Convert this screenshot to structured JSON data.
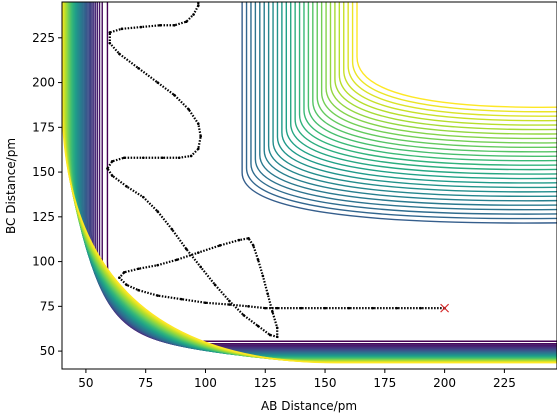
{
  "chart_data": {
    "type": "contour",
    "title": "",
    "xlabel": "AB Distance/pm",
    "ylabel": "BC Distance/pm",
    "xlim": [
      40,
      247
    ],
    "ylim": [
      40,
      245
    ],
    "xticks": [
      50,
      75,
      100,
      125,
      150,
      175,
      200,
      225
    ],
    "yticks": [
      50,
      75,
      100,
      125,
      150,
      175,
      200,
      225
    ],
    "xtick_labels": [
      "50",
      "75",
      "100",
      "125",
      "150",
      "175",
      "200",
      "225"
    ],
    "ytick_labels": [
      "50",
      "75",
      "100",
      "125",
      "150",
      "175",
      "200",
      "225"
    ],
    "colormap": "viridis",
    "contour_levels": 38,
    "trajectory": {
      "marker": "dotted-line",
      "color": "#000000",
      "points": [
        [
          200,
          74
        ],
        [
          190,
          74
        ],
        [
          180,
          74
        ],
        [
          170,
          74
        ],
        [
          160,
          74
        ],
        [
          150,
          74
        ],
        [
          140,
          74
        ],
        [
          130,
          74
        ],
        [
          125,
          74
        ],
        [
          118,
          75
        ],
        [
          110,
          76
        ],
        [
          100,
          77
        ],
        [
          90,
          79
        ],
        [
          80,
          81
        ],
        [
          72,
          84
        ],
        [
          67,
          87
        ],
        [
          64,
          91
        ],
        [
          66,
          94
        ],
        [
          72,
          96
        ],
        [
          80,
          98
        ],
        [
          88,
          101
        ],
        [
          97,
          105
        ],
        [
          106,
          109
        ],
        [
          114,
          112
        ],
        [
          118,
          113
        ],
        [
          120,
          109
        ],
        [
          122,
          101
        ],
        [
          124,
          92
        ],
        [
          126,
          82
        ],
        [
          128,
          72
        ],
        [
          130,
          63
        ],
        [
          130,
          58
        ],
        [
          127,
          59
        ],
        [
          122,
          64
        ],
        [
          116,
          70
        ],
        [
          110,
          78
        ],
        [
          104,
          87
        ],
        [
          98,
          97
        ],
        [
          92,
          107
        ],
        [
          86,
          118
        ],
        [
          80,
          128
        ],
        [
          74,
          136
        ],
        [
          67,
          142
        ],
        [
          61,
          148
        ],
        [
          59,
          152
        ],
        [
          61,
          156
        ],
        [
          66,
          158
        ],
        [
          74,
          158
        ],
        [
          82,
          158
        ],
        [
          89,
          158
        ],
        [
          94,
          159
        ],
        [
          97,
          163
        ],
        [
          98,
          170
        ],
        [
          97,
          177
        ],
        [
          93,
          185
        ],
        [
          87,
          193
        ],
        [
          80,
          200
        ],
        [
          72,
          208
        ],
        [
          64,
          216
        ],
        [
          60,
          222
        ],
        [
          60,
          228
        ],
        [
          65,
          230
        ],
        [
          73,
          231
        ],
        [
          81,
          232
        ],
        [
          87,
          232
        ],
        [
          92,
          234
        ],
        [
          95,
          238
        ],
        [
          97,
          243
        ],
        [
          97,
          245
        ]
      ]
    },
    "end_marker": {
      "x": 200,
      "y": 74,
      "symbol": "x",
      "color": "#d62728"
    },
    "colors": {
      "background": "#ffffff",
      "axis": "#000000",
      "trajectory": "#000000",
      "end_marker": "#d62728"
    }
  }
}
